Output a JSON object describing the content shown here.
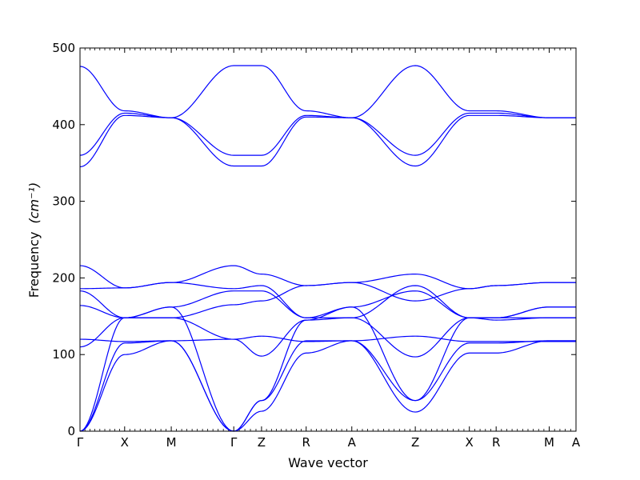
{
  "chart_data": {
    "type": "line",
    "title": "",
    "xlabel": "Wave vector",
    "ylabel": "Frequency",
    "ylabel_unit": "(cm⁻¹)",
    "ylim": [
      0,
      500
    ],
    "yticks": [
      0,
      100,
      200,
      300,
      400,
      500
    ],
    "grid": false,
    "legend": "none",
    "series_color": "#0000ff",
    "high_symmetry_points": [
      {
        "label": "Γ",
        "position": 0.0
      },
      {
        "label": "X",
        "position": 0.09
      },
      {
        "label": "M",
        "position": 0.184
      },
      {
        "label": "Γ",
        "position": 0.31
      },
      {
        "label": "Z",
        "position": 0.366
      },
      {
        "label": "R",
        "position": 0.456
      },
      {
        "label": "A",
        "position": 0.548
      },
      {
        "label": "Z",
        "position": 0.676
      },
      {
        "label": "X",
        "position": 0.785
      },
      {
        "label": "R",
        "position": 0.839
      },
      {
        "label": "M",
        "position": 0.946
      },
      {
        "label": "A",
        "position": 1.0
      }
    ],
    "series": [
      {
        "values": [
          0,
          100,
          118,
          0,
          26,
          102,
          118,
          25,
          102,
          102,
          118,
          118
        ]
      },
      {
        "values": [
          0,
          115,
          118,
          0,
          40,
          118,
          118,
          40,
          115,
          115,
          118,
          118
        ]
      },
      {
        "values": [
          0,
          148,
          162,
          0,
          40,
          145,
          162,
          40,
          148,
          148,
          162,
          162
        ]
      },
      {
        "values": [
          110,
          148,
          148,
          120,
          98,
          145,
          148,
          97,
          148,
          148,
          148,
          148
        ]
      },
      {
        "values": [
          120,
          117,
          118,
          120,
          124,
          117,
          118,
          124,
          117,
          117,
          117,
          117
        ]
      },
      {
        "values": [
          164,
          148,
          148,
          165,
          170,
          190,
          194,
          170,
          186,
          190,
          194,
          194
        ]
      },
      {
        "values": [
          183,
          148,
          162,
          183,
          183,
          148,
          162,
          183,
          148,
          148,
          162,
          162
        ]
      },
      {
        "values": [
          186,
          187,
          194,
          186,
          190,
          148,
          148,
          190,
          148,
          145,
          148,
          148
        ]
      },
      {
        "values": [
          216,
          187,
          194,
          216,
          205,
          190,
          194,
          205,
          186,
          190,
          194,
          194
        ]
      },
      {
        "values": [
          345,
          412,
          409,
          346,
          346,
          410,
          409,
          346,
          412,
          412,
          409,
          409
        ]
      },
      {
        "values": [
          360,
          415,
          409,
          360,
          360,
          412,
          409,
          360,
          415,
          415,
          409,
          409
        ]
      },
      {
        "values": [
          476,
          418,
          409,
          477,
          477,
          418,
          409,
          477,
          418,
          418,
          409,
          409
        ]
      }
    ]
  }
}
